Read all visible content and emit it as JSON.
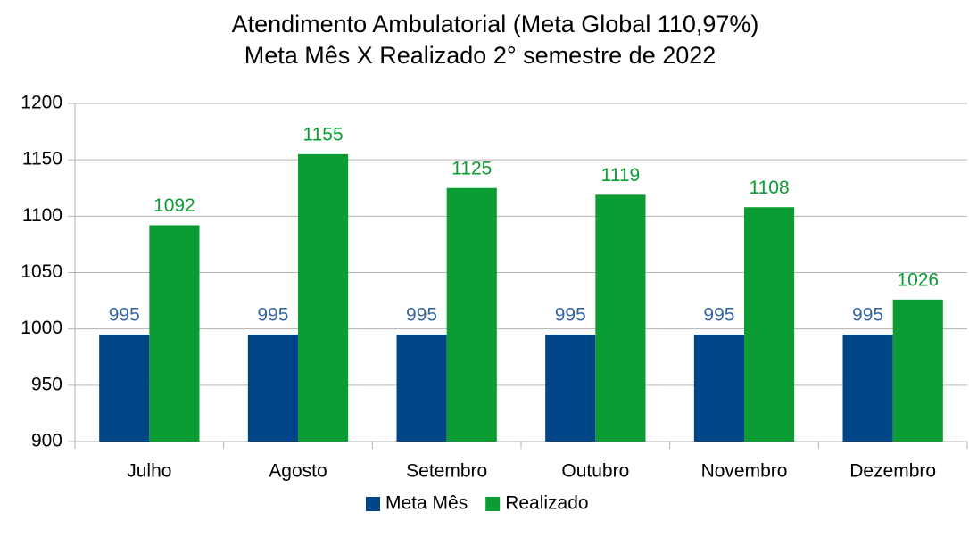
{
  "chart_data": {
    "type": "bar",
    "title": "Atendimento Ambulatorial (Meta Global 110,97%)",
    "subtitle": "Meta Mês X Realizado 2° semestre de 2022",
    "categories": [
      "Julho",
      "Agosto",
      "Setembro",
      "Outubro",
      "Novembro",
      "Dezembro"
    ],
    "series": [
      {
        "name": "Meta Mês",
        "color": "#004586",
        "values": [
          995,
          995,
          995,
          995,
          995,
          995
        ]
      },
      {
        "name": "Realizado",
        "color": "#0b9c33",
        "values": [
          1092,
          1155,
          1125,
          1119,
          1108,
          1026
        ]
      }
    ],
    "ylim": [
      900,
      1200
    ],
    "yticks": [
      900,
      950,
      1000,
      1050,
      1100,
      1150,
      1200
    ],
    "grid": true,
    "legend": "bottom"
  }
}
